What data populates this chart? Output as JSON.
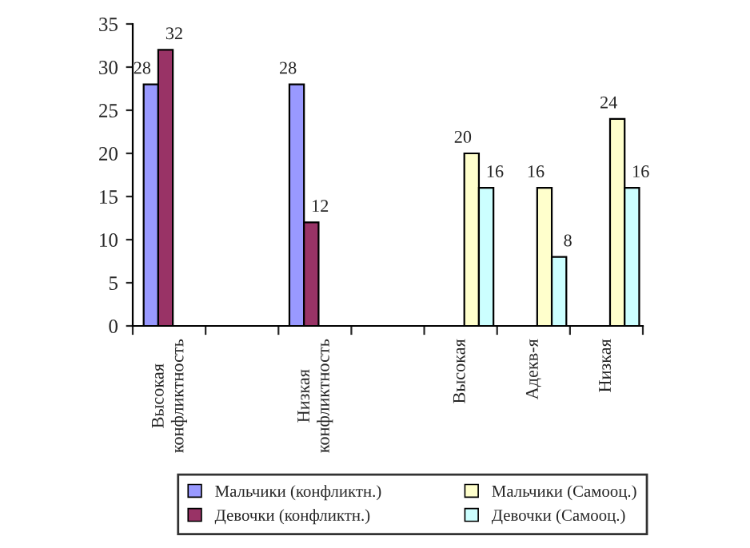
{
  "chart_data": {
    "type": "bar",
    "categories": [
      "Высокая конфликтность",
      null,
      "Низкая конфликтность",
      null,
      "Высокая",
      "Адекв-я",
      "Низкая"
    ],
    "series": [
      {
        "name": "Мальчики (конфликтн.)",
        "color": "#9999ff",
        "values": [
          28,
          null,
          28,
          null,
          null,
          null,
          null
        ]
      },
      {
        "name": "Девочки (конфликтн.)",
        "color": "#993366",
        "values": [
          32,
          null,
          12,
          null,
          null,
          null,
          null
        ]
      },
      {
        "name": "Мальчики (Самооц.)",
        "color": "#ffffcc",
        "values": [
          null,
          null,
          null,
          null,
          20,
          16,
          24
        ]
      },
      {
        "name": "Девочки (Самооц.)",
        "color": "#ccffff",
        "values": [
          null,
          null,
          null,
          null,
          16,
          8,
          16
        ]
      }
    ],
    "ylim": [
      0,
      35
    ],
    "yticks": [
      0,
      5,
      10,
      15,
      20,
      25,
      30,
      35
    ],
    "data_labels": true,
    "legend": "bottom",
    "grid": false
  }
}
